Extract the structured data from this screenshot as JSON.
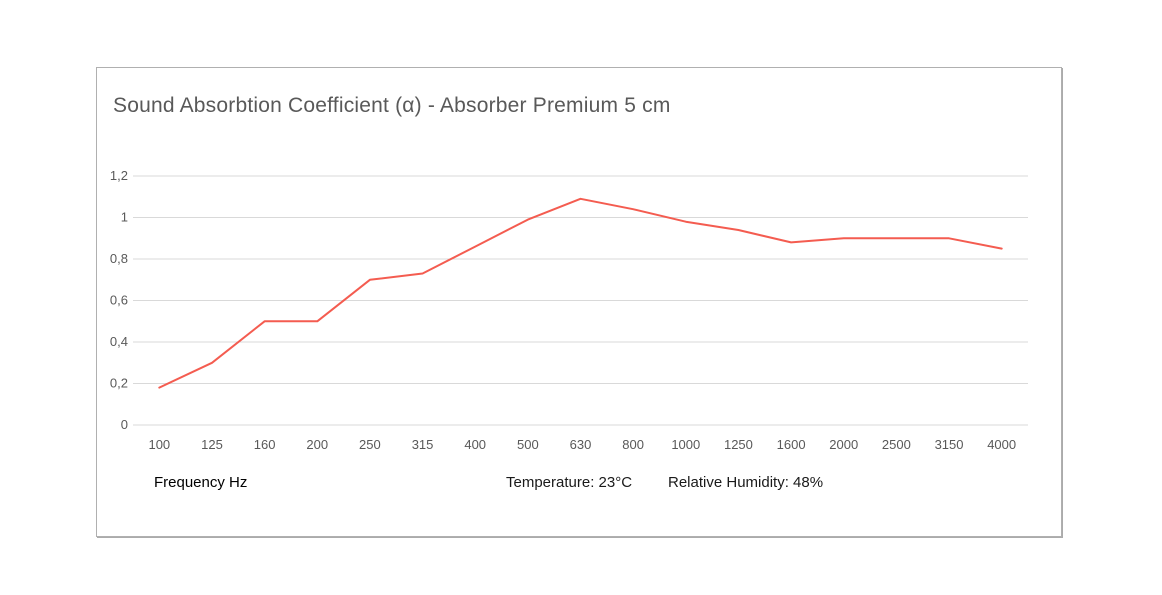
{
  "chart_data": {
    "type": "line",
    "title": "Sound Absorbtion Coefficient (α) - Absorber Premium 5 cm",
    "categories": [
      "100",
      "125",
      "160",
      "200",
      "250",
      "315",
      "400",
      "500",
      "630",
      "800",
      "1000",
      "1250",
      "1600",
      "2000",
      "2500",
      "3150",
      "4000"
    ],
    "values": [
      0.18,
      0.3,
      0.5,
      0.5,
      0.7,
      0.73,
      0.86,
      0.99,
      1.09,
      1.04,
      0.98,
      0.94,
      0.88,
      0.9,
      0.9,
      0.9,
      0.85
    ],
    "xlabel": "Frequency Hz",
    "ylabel": "",
    "ylim": [
      0,
      1.2
    ],
    "y_tick_step": 0.2,
    "y_tick_labels": [
      "0",
      "0,2",
      "0,4",
      "0,6",
      "0,8",
      "1",
      "1,2"
    ],
    "grid": true,
    "legend": "none",
    "line_color": "#f45c50",
    "gridline_color": "#d9d9d9",
    "tick_label_color": "#595959",
    "title_color": "#595959"
  },
  "footer": {
    "xlabel": "Frequency Hz",
    "temperature": "Temperature: 23°C",
    "humidity": "Relative Humidity: 48%"
  }
}
